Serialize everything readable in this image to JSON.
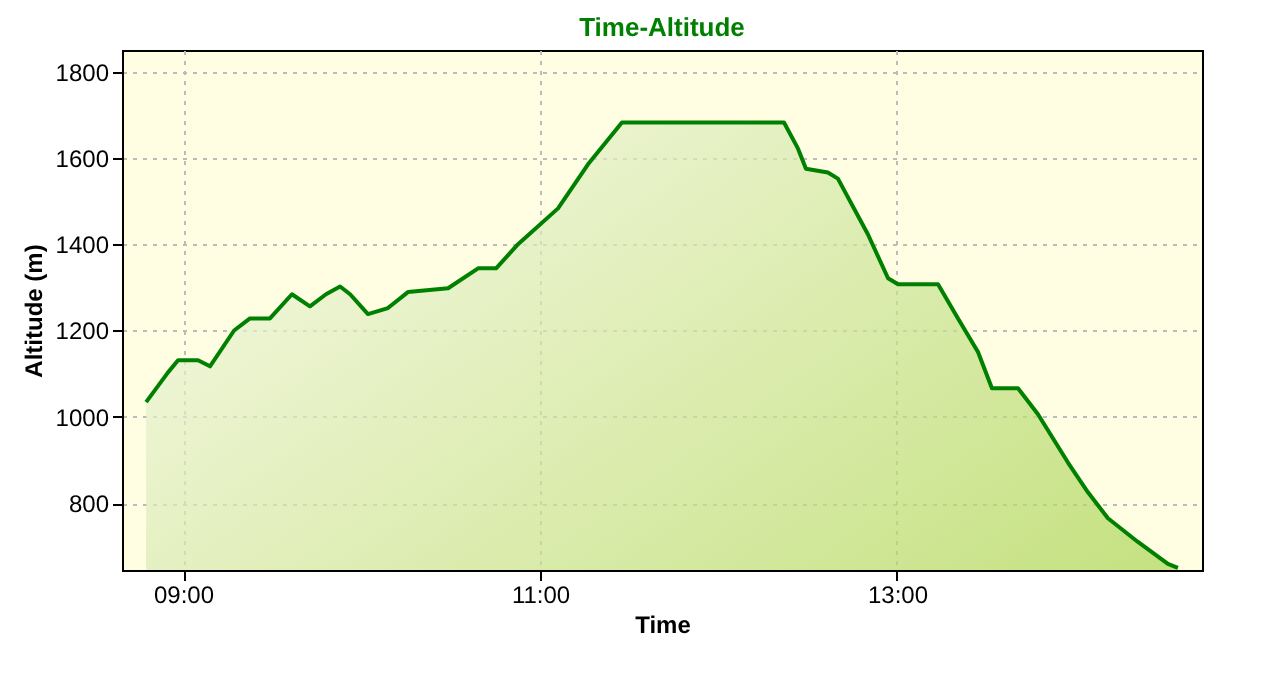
{
  "chart_data": {
    "type": "area",
    "title": "Time-Altitude",
    "xlabel": "Time",
    "ylabel": "Altitude (m)",
    "x": [
      8.793,
      8.916,
      8.972,
      9.084,
      9.151,
      9.286,
      9.375,
      9.487,
      9.61,
      9.711,
      9.801,
      9.88,
      9.936,
      10.036,
      10.148,
      10.26,
      10.485,
      10.653,
      10.754,
      10.877,
      11.101,
      11.269,
      11.459,
      12.277,
      12.367,
      12.445,
      12.49,
      12.613,
      12.669,
      12.837,
      12.95,
      13.006,
      13.23,
      13.342,
      13.454,
      13.532,
      13.678,
      13.79,
      13.958,
      14.07,
      14.182,
      14.35,
      14.518,
      14.574
    ],
    "series": [
      {
        "color": "#008000",
        "values": [
          1034,
          1103,
          1131,
          1131,
          1117,
          1200,
          1228,
          1228,
          1284,
          1256,
          1284,
          1302,
          1284,
          1238,
          1252,
          1289,
          1298,
          1344,
          1344,
          1400,
          1483,
          1585,
          1682,
          1682,
          1682,
          1622,
          1575,
          1566,
          1552,
          1423,
          1321,
          1307,
          1307,
          1228,
          1150,
          1066,
          1066,
          1006,
          894,
          825,
          765,
          710,
          659,
          650
        ]
      }
    ],
    "xlim": [
      8.658,
      14.709
    ],
    "ylim": [
      645,
      1850
    ],
    "xticks": [
      {
        "value": 9,
        "label": "09:00"
      },
      {
        "value": 11,
        "label": "11:00"
      },
      {
        "value": 13,
        "label": "13:00"
      }
    ],
    "yticks": [
      800,
      1000,
      1200,
      1400,
      1600,
      1800
    ],
    "grid": true
  }
}
